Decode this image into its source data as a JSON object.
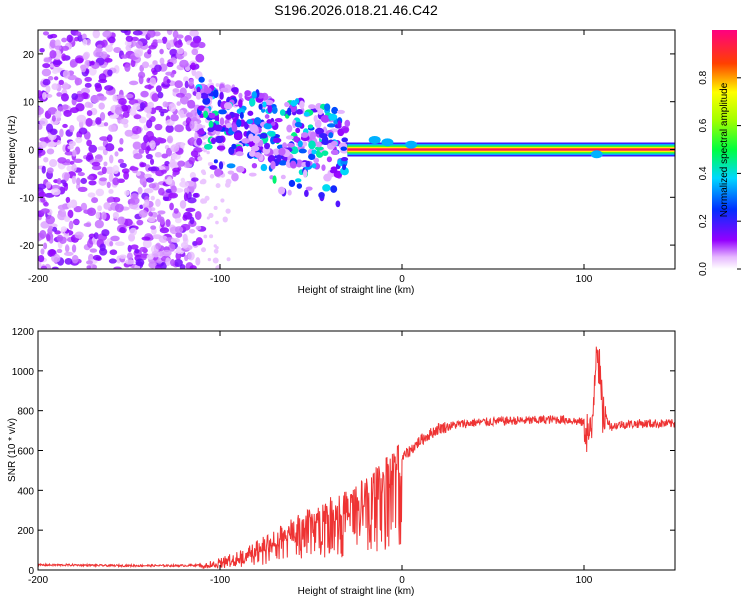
{
  "title": "S196.2026.018.21.46.C42",
  "chart_data": [
    {
      "type": "heatmap",
      "xlabel": "Height of straight line (km)",
      "ylabel": "Frequency (Hz)",
      "xlim": [
        -200,
        150
      ],
      "ylim": [
        -25,
        25
      ],
      "xticks": [
        -200,
        -100,
        0,
        100
      ],
      "yticks": [
        -20,
        -10,
        0,
        10,
        20
      ],
      "colorbar": {
        "label": "Normalized spectral amplitude",
        "range": [
          0,
          1
        ],
        "ticks": [
          "0.0",
          "0.2",
          "0.4",
          "0.6",
          "0.8"
        ]
      },
      "features": [
        {
          "name": "broadband noise",
          "x_range": [
            -200,
            -110
          ],
          "f_range": [
            -25,
            25
          ]
        },
        {
          "name": "scattered tone cluster",
          "x_range": [
            -112,
            -30
          ],
          "f_range": [
            -10,
            14
          ]
        },
        {
          "name": "stable carrier tone",
          "x_range": [
            -30,
            150
          ],
          "frequency_hz": 0,
          "amplitude": 0.95
        }
      ]
    },
    {
      "type": "line",
      "xlabel": "Height of straight line (km)",
      "ylabel": "SNR (10 * v/v)",
      "xlim": [
        -200,
        150
      ],
      "ylim": [
        0,
        1200
      ],
      "xticks": [
        -200,
        -100,
        0,
        100
      ],
      "yticks": [
        0,
        200,
        400,
        600,
        800,
        1000,
        1200
      ],
      "color": "#ee3333",
      "series": [
        {
          "name": "SNR",
          "x": [
            -200,
            -180,
            -160,
            -140,
            -120,
            -110,
            -100,
            -90,
            -80,
            -70,
            -60,
            -50,
            -40,
            -30,
            -20,
            -10,
            0,
            10,
            20,
            30,
            40,
            50,
            60,
            70,
            80,
            90,
            100,
            104,
            107,
            110,
            115,
            120,
            130,
            140,
            150
          ],
          "y": [
            25,
            25,
            22,
            22,
            22,
            25,
            40,
            70,
            110,
            160,
            210,
            260,
            300,
            330,
            390,
            470,
            560,
            650,
            710,
            730,
            740,
            745,
            750,
            750,
            755,
            755,
            740,
            650,
            1180,
            800,
            720,
            730,
            735,
            735,
            735
          ]
        }
      ]
    }
  ]
}
